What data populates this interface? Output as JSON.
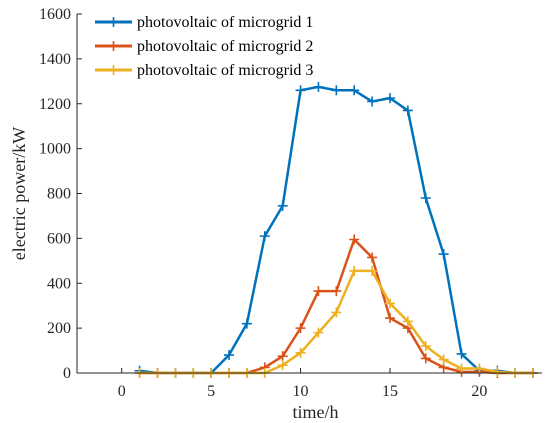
{
  "chart_data": {
    "type": "line",
    "title": "",
    "xlabel": "time/h",
    "ylabel": "electric power/kW",
    "xlim": [
      -2.5,
      23.5
    ],
    "ylim": [
      0,
      1600
    ],
    "xticks": [
      0,
      5,
      10,
      15,
      20
    ],
    "yticks": [
      0,
      200,
      400,
      600,
      800,
      1000,
      1200,
      1400,
      1600
    ],
    "x": [
      1,
      2,
      3,
      4,
      5,
      6,
      7,
      8,
      9,
      10,
      11,
      12,
      13,
      14,
      15,
      16,
      17,
      18,
      19,
      20,
      21,
      22,
      23
    ],
    "legend_position": "top-left",
    "grid": false,
    "series": [
      {
        "name": "photovoltaic of microgrid 1",
        "color": "#0072BD",
        "values": [
          10,
          0,
          0,
          0,
          0,
          80,
          220,
          610,
          745,
          1260,
          1275,
          1260,
          1260,
          1210,
          1225,
          1170,
          780,
          530,
          85,
          10,
          10,
          0,
          0
        ]
      },
      {
        "name": "photovoltaic of microgrid 2",
        "color": "#D95319",
        "values": [
          0,
          0,
          0,
          0,
          0,
          0,
          0,
          25,
          75,
          200,
          365,
          365,
          595,
          515,
          245,
          200,
          65,
          25,
          5,
          5,
          0,
          0,
          0
        ]
      },
      {
        "name": "photovoltaic of microgrid 3",
        "color": "#EDB120",
        "values": [
          0,
          0,
          0,
          0,
          0,
          0,
          0,
          0,
          35,
          90,
          180,
          270,
          455,
          455,
          310,
          230,
          120,
          60,
          20,
          20,
          5,
          0,
          0
        ]
      }
    ]
  }
}
